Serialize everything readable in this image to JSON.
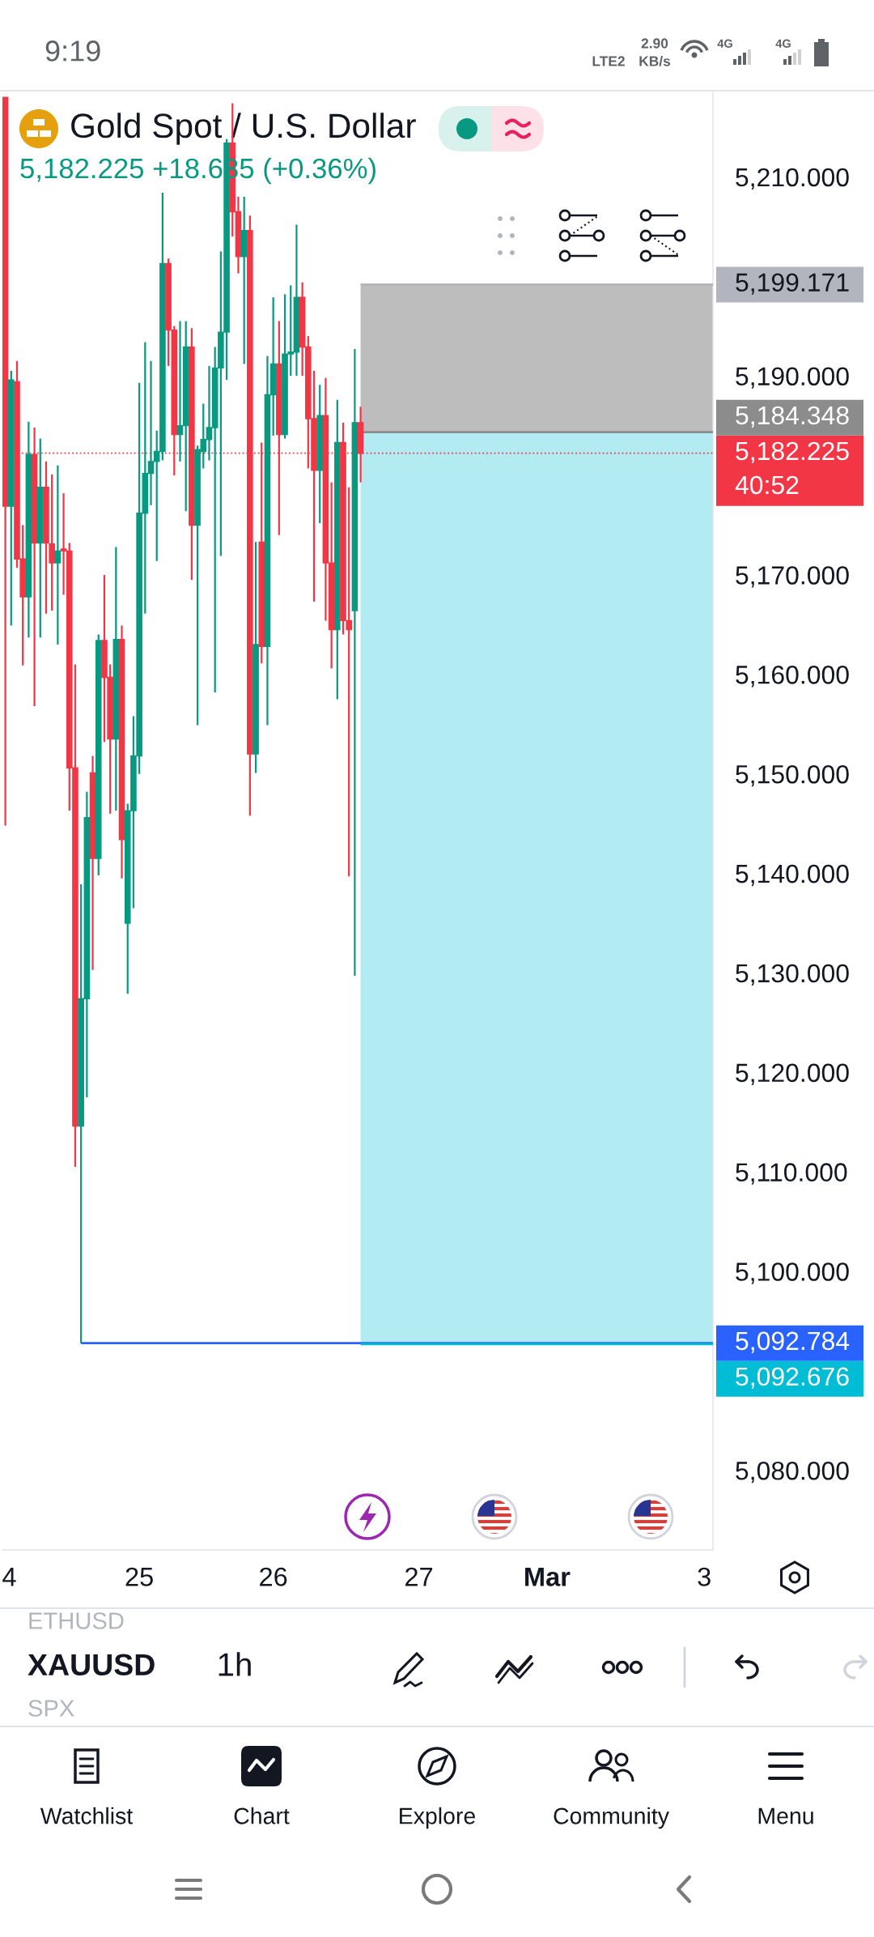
{
  "chart_data": {
    "type": "candlestick",
    "title": "Gold Spot / U.S. Dollar",
    "subtitle": "5,182.225 +18.635 (+0.36%)",
    "categories": [
      "4",
      null,
      null,
      null,
      null,
      null,
      null,
      null,
      null,
      null,
      null,
      null,
      null,
      null,
      null,
      null,
      null,
      null,
      null,
      null,
      null,
      null,
      null,
      "25",
      null,
      null,
      null,
      null,
      null,
      null,
      null,
      null,
      null,
      null,
      null,
      null,
      null,
      null,
      null,
      null,
      null,
      null,
      null,
      null,
      null,
      null,
      "26",
      null,
      null,
      null,
      null,
      null,
      null,
      null,
      null,
      null,
      null,
      null,
      null,
      null,
      null,
      null,
      null,
      null,
      null,
      null,
      null,
      null,
      null,
      null,
      null,
      "27",
      null,
      null,
      null,
      null,
      null,
      null,
      null,
      null,
      null,
      null,
      null,
      null,
      null,
      null,
      null,
      null,
      null,
      null,
      null,
      null,
      null,
      "Mar",
      null,
      null,
      null,
      null,
      null,
      null,
      null,
      null,
      null,
      null,
      null,
      null,
      null,
      null,
      null,
      null,
      null,
      null,
      null,
      null,
      null,
      null,
      null,
      null,
      null,
      null,
      "3",
      null
    ],
    "ohlc": [
      [
        5218.0,
        5218.0,
        5144.8,
        5176.9
      ],
      [
        5176.9,
        5190.5,
        5164.9,
        5189.6
      ],
      [
        5189.4,
        5191.5,
        5170.7,
        5171.6
      ],
      [
        5171.6,
        5175.0,
        5160.9,
        5167.8
      ],
      [
        5167.8,
        5185.4,
        5163.7,
        5182.1
      ],
      [
        5182.1,
        5184.8,
        5156.8,
        5173.2
      ],
      [
        5173.2,
        5183.7,
        5163.7,
        5178.8
      ],
      [
        5178.8,
        5181.4,
        5166.1,
        5173.2
      ],
      [
        5173.1,
        5180.1,
        5166.4,
        5171.2
      ],
      [
        5171.2,
        5181.0,
        5163.0,
        5172.4
      ],
      [
        5172.6,
        5178.2,
        5168.0,
        5172.4
      ],
      [
        5172.4,
        5173.2,
        5146.3,
        5150.6
      ],
      [
        5150.6,
        5161.0,
        5110.5,
        5114.6
      ],
      [
        5114.6,
        5138.9,
        5092.784,
        5127.4
      ],
      [
        5127.4,
        5148.2,
        5117.5,
        5145.6
      ],
      [
        5150.1,
        5151.8,
        5130.3,
        5141.5
      ],
      [
        5141.5,
        5164.0,
        5139.8,
        5163.4
      ],
      [
        5163.4,
        5170.0,
        5153.2,
        5159.7
      ],
      [
        5159.7,
        5161.0,
        5146.0,
        5153.5
      ],
      [
        5153.5,
        5172.8,
        5146.3,
        5163.5
      ],
      [
        5163.5,
        5164.9,
        5139.5,
        5143.4
      ],
      [
        5135.0,
        5147.0,
        5127.9,
        5146.3
      ],
      [
        5146.3,
        5155.8,
        5136.5,
        5151.8
      ],
      [
        5151.8,
        5189.3,
        5150.0,
        5176.2
      ],
      [
        5176.2,
        5193.4,
        5166.1,
        5180.2
      ],
      [
        5180.2,
        5191.5,
        5177.0,
        5181.4
      ],
      [
        5181.4,
        5184.5,
        5171.4,
        5182.4
      ],
      [
        5182.4,
        5208.4,
        5181.5,
        5201.3
      ],
      [
        5201.3,
        5201.8,
        5191.0,
        5194.6
      ],
      [
        5194.6,
        5195.0,
        5180.0,
        5184.1
      ],
      [
        5184.1,
        5195.5,
        5181.4,
        5185.0
      ],
      [
        5185.0,
        5195.5,
        5176.4,
        5192.9
      ],
      [
        5192.9,
        5194.8,
        5169.5,
        5175.0
      ],
      [
        5175.0,
        5183.0,
        5154.9,
        5182.6
      ],
      [
        5182.4,
        5187.2,
        5180.7,
        5183.6
      ],
      [
        5183.6,
        5191.0,
        5181.5,
        5184.8
      ],
      [
        5184.8,
        5192.9,
        5158.2,
        5190.8
      ],
      [
        5190.8,
        5202.5,
        5171.9,
        5194.4
      ],
      [
        5194.4,
        5213.8,
        5189.6,
        5213.4
      ],
      [
        5213.4,
        5217.4,
        5204.0,
        5206.5
      ],
      [
        5206.5,
        5208.0,
        5200.3,
        5202.0
      ],
      [
        5202.0,
        5208.0,
        5191.2,
        5204.6
      ],
      [
        5204.6,
        5206.1,
        5145.8,
        5152.0
      ],
      [
        5152.0,
        5173.3,
        5150.1,
        5163.0
      ],
      [
        5173.3,
        5183.3,
        5161.1,
        5162.8
      ],
      [
        5162.8,
        5192.0,
        5154.9,
        5188.1
      ],
      [
        5188.1,
        5197.9,
        5184.0,
        5191.2
      ],
      [
        5191.2,
        5195.5,
        5174.0,
        5184.1
      ],
      [
        5184.1,
        5198.2,
        5183.7,
        5192.2
      ],
      [
        5192.2,
        5199.1,
        5190.0,
        5192.4
      ],
      [
        5192.4,
        5205.2,
        5190.0,
        5197.9
      ],
      [
        5197.9,
        5199.4,
        5190.0,
        5192.9
      ],
      [
        5192.9,
        5194.0,
        5180.7,
        5185.7
      ],
      [
        5185.7,
        5190.5,
        5167.3,
        5180.5
      ],
      [
        5180.5,
        5189.1,
        5175.2,
        5186.0
      ],
      [
        5186.0,
        5189.8,
        5165.4,
        5171.2
      ],
      [
        5171.2,
        5179.3,
        5160.6,
        5164.5
      ],
      [
        5164.5,
        5187.6,
        5157.5,
        5183.3
      ],
      [
        5183.3,
        5185.3,
        5164.0,
        5165.4
      ],
      [
        5165.4,
        5178.8,
        5139.7,
        5164.5
      ],
      [
        5166.4,
        5192.7,
        5129.7,
        5185.3
      ],
      [
        5185.3,
        5186.9,
        5179.3,
        5182.225
      ],
      null,
      null,
      null,
      null,
      null,
      null,
      null,
      null,
      null,
      null,
      null,
      null,
      null,
      null,
      null,
      null,
      null,
      null,
      null,
      null,
      null,
      null,
      null,
      null,
      null,
      null,
      null,
      null,
      null,
      null,
      null,
      null,
      null,
      null,
      null,
      null,
      null,
      null,
      null,
      null,
      null,
      null,
      null,
      null,
      null,
      null,
      null,
      null,
      null,
      null,
      null,
      null,
      null,
      null,
      null,
      null,
      null,
      null,
      null,
      null
    ],
    "colors": [
      "#f23645",
      "#089981",
      "#f23645",
      "#f23645",
      "#089981",
      "#f23645",
      "#089981",
      "#f23645",
      "#f23645",
      "#089981",
      "#f23645",
      "#f23645",
      "#f23645",
      "#089981",
      "#089981",
      "#f23645",
      "#089981",
      "#f23645",
      "#f23645",
      "#089981",
      "#f23645",
      "#089981",
      "#089981",
      "#089981",
      "#089981",
      "#089981",
      "#089981",
      "#089981",
      "#f23645",
      "#f23645",
      "#089981",
      "#089981",
      "#f23645",
      "#089981",
      "#089981",
      "#089981",
      "#089981",
      "#089981",
      "#089981",
      "#f23645",
      "#f23645",
      "#089981",
      "#f23645",
      "#089981",
      "#f23645",
      "#089981",
      "#089981",
      "#f23645",
      "#089981",
      "#089981",
      "#089981",
      "#f23645",
      "#f23645",
      "#f23645",
      "#089981",
      "#f23645",
      "#f23645",
      "#089981",
      "#f23645",
      "#f23645",
      "#089981",
      "#f23645",
      null,
      null,
      null,
      null,
      null,
      null,
      null,
      null,
      null,
      null,
      null,
      null,
      null,
      null,
      null,
      null,
      null,
      null,
      null,
      null,
      null,
      null,
      null,
      null,
      null,
      null,
      null,
      null,
      null,
      null,
      null,
      null,
      null,
      null,
      null,
      null,
      null,
      null,
      null,
      null,
      null,
      null,
      null,
      null,
      null,
      null,
      null,
      null,
      null,
      null,
      null,
      null,
      null,
      null,
      null,
      null,
      null,
      null,
      null,
      null
    ],
    "ylim": [
      5072,
      5218.5
    ],
    "yticks": [
      {
        "value": 5210,
        "label": "5,210.000"
      },
      {
        "value": 5190,
        "label": "5,190.000"
      },
      {
        "value": 5170,
        "label": "5,170.000"
      },
      {
        "value": 5160,
        "label": "5,160.000"
      },
      {
        "value": 5150,
        "label": "5,150.000"
      },
      {
        "value": 5140,
        "label": "5,140.000"
      },
      {
        "value": 5130,
        "label": "5,130.000"
      },
      {
        "value": 5120,
        "label": "5,120.000"
      },
      {
        "value": 5110,
        "label": "5,110.000"
      },
      {
        "value": 5100,
        "label": "5,100.000"
      },
      {
        "value": 5080,
        "label": "5,080.000"
      }
    ],
    "grid": false,
    "ref_lines": [
      {
        "axis": "y",
        "value": 5182.225,
        "label": "5,182.225",
        "color": "#f23645",
        "line_style": "dotted"
      },
      {
        "axis": "y",
        "value": 5092.784,
        "label": "5,092.784",
        "color": "#2962ff",
        "line_style": "solid"
      },
      {
        "axis": "y",
        "value": 5199.171,
        "label": "5,199.171",
        "color": "#b2b5be",
        "line_style": "solid"
      },
      {
        "axis": "y",
        "value": 5184.348,
        "label": "5,184.348",
        "color": "#8c8c8c",
        "line_style": "solid"
      },
      {
        "axis": "y",
        "value": 5092.676,
        "label": "5,092.676",
        "color": "#00bcd4",
        "line_style": "solid"
      }
    ],
    "bands": [
      {
        "axis": "y",
        "from": 5184.348,
        "to": 5199.171,
        "color": "#bdbdbd"
      },
      {
        "axis": "y",
        "from": 5092.676,
        "to": 5184.348,
        "color": "#b2ebf2"
      }
    ],
    "annotations": [
      "40:52",
      "9:19",
      "LTE2",
      "2.90",
      "KB/s",
      "4G",
      "4G",
      "ETHUSD",
      "XAUUSD",
      "1h",
      "SPX",
      "Watchlist",
      "Chart",
      "Explore",
      "Community",
      "Menu"
    ]
  }
}
